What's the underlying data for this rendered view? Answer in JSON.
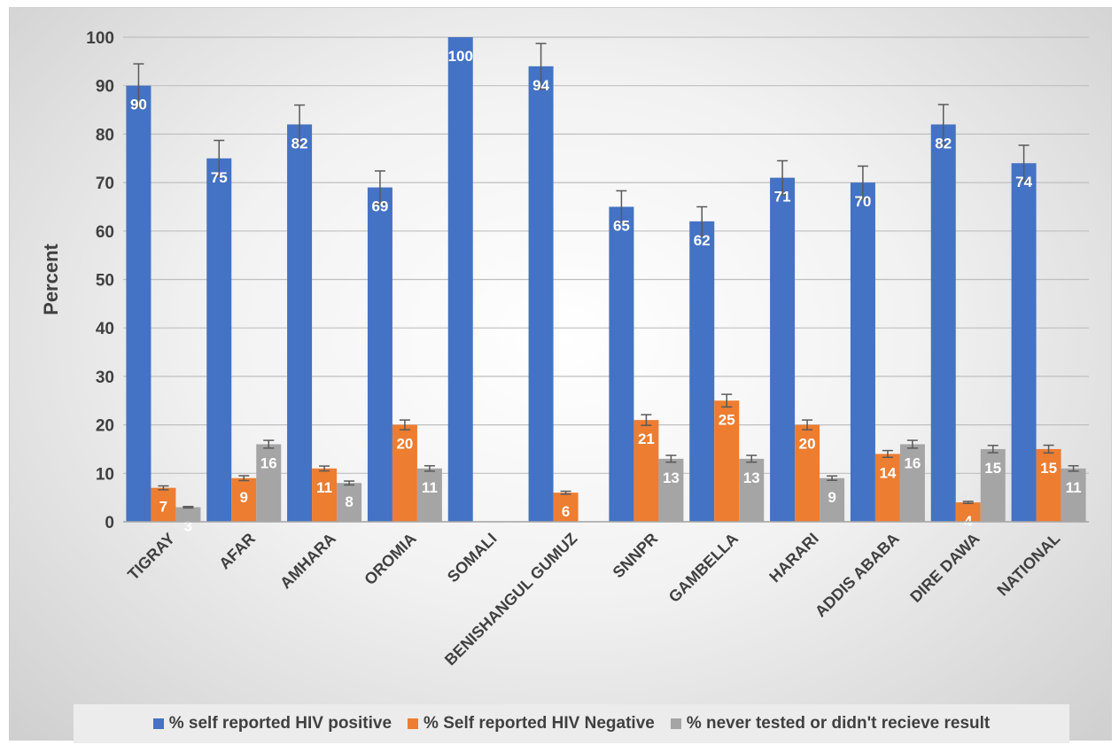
{
  "chart_data": {
    "type": "bar",
    "title": "",
    "xlabel": "",
    "ylabel": "Percent",
    "ylim": [
      0,
      100
    ],
    "yticks": [
      0,
      10,
      20,
      30,
      40,
      50,
      60,
      70,
      80,
      90,
      100
    ],
    "grid": true,
    "legend_position": "bottom",
    "categories": [
      "TIGRAY",
      "AFAR",
      "AMHARA",
      "OROMIA",
      "SOMALI",
      "BENISHANGUL GUMUZ",
      "SNNPR",
      "GAMBELLA",
      "HARARI",
      "ADDIS ABABA",
      "DIRE DAWA",
      "NATIONAL"
    ],
    "series": [
      {
        "name": "% self reported HIV positive",
        "color": "#4472c4",
        "values": [
          90,
          75,
          82,
          69,
          100,
          94,
          65,
          62,
          71,
          70,
          82,
          74
        ],
        "labels": [
          "90",
          "75",
          "82",
          "69",
          "100",
          "94",
          "65",
          "62",
          "71",
          "70",
          "82",
          "74"
        ],
        "error": [
          4.5,
          3.7,
          4.0,
          3.4,
          0,
          4.7,
          3.3,
          3.0,
          3.5,
          3.4,
          4.1,
          3.7
        ]
      },
      {
        "name": "% Self reported HIV Negative",
        "color": "#ed7d31",
        "values": [
          7,
          9,
          11,
          20,
          0,
          6,
          21,
          25,
          20,
          14,
          4,
          15
        ],
        "labels": [
          "7",
          "9",
          "11",
          "20",
          "",
          "6",
          "21",
          "25",
          "20",
          "14",
          "4",
          "15"
        ],
        "error": [
          0.4,
          0.5,
          0.5,
          1.0,
          0,
          0.3,
          1.1,
          1.3,
          1.0,
          0.7,
          0.2,
          0.8
        ]
      },
      {
        "name": "% never tested or didn't recieve result",
        "color": "#a5a5a5",
        "values": [
          3,
          16,
          8,
          11,
          0,
          0,
          13,
          13,
          9,
          16,
          15,
          11
        ],
        "labels": [
          "3",
          "16",
          "8",
          "11",
          "",
          "",
          "13",
          "13",
          "9",
          "16",
          "15",
          "11"
        ],
        "error": [
          0.15,
          0.8,
          0.4,
          0.55,
          0,
          0,
          0.7,
          0.7,
          0.45,
          0.8,
          0.75,
          0.55
        ]
      }
    ]
  }
}
